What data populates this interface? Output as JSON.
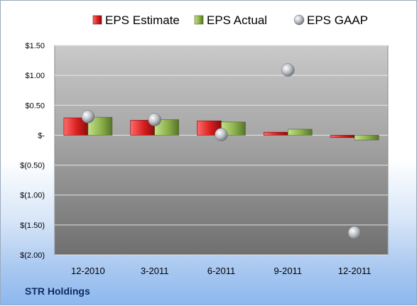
{
  "company_label": "STR Holdings",
  "chart_data": {
    "type": "bar",
    "categories": [
      "12-2010",
      "3-2011",
      "6-2011",
      "9-2011",
      "12-2011"
    ],
    "series": [
      {
        "name": "EPS Estimate",
        "kind": "bar",
        "color": "#d01f1f",
        "values": [
          0.29,
          0.25,
          0.24,
          0.05,
          -0.04
        ]
      },
      {
        "name": "EPS Actual",
        "kind": "bar",
        "color": "#8cb04a",
        "values": [
          0.3,
          0.26,
          0.22,
          0.1,
          -0.08
        ]
      },
      {
        "name": "EPS GAAP",
        "kind": "point",
        "color": "#b9bcc2",
        "values": [
          0.31,
          0.26,
          0.01,
          1.09,
          -1.63
        ]
      }
    ],
    "ylim": [
      -2.0,
      1.5
    ],
    "yticks": [
      1.5,
      1.0,
      0.5,
      0,
      -0.5,
      -1.0,
      -1.5,
      -2.0
    ],
    "ytick_labels": [
      "$1.50",
      "$1.00",
      "$0.50",
      "$-",
      "$(0.50)",
      "$(1.00)",
      "$(1.50)",
      "$(2.00)"
    ],
    "grid": true,
    "legend_position": "top"
  }
}
